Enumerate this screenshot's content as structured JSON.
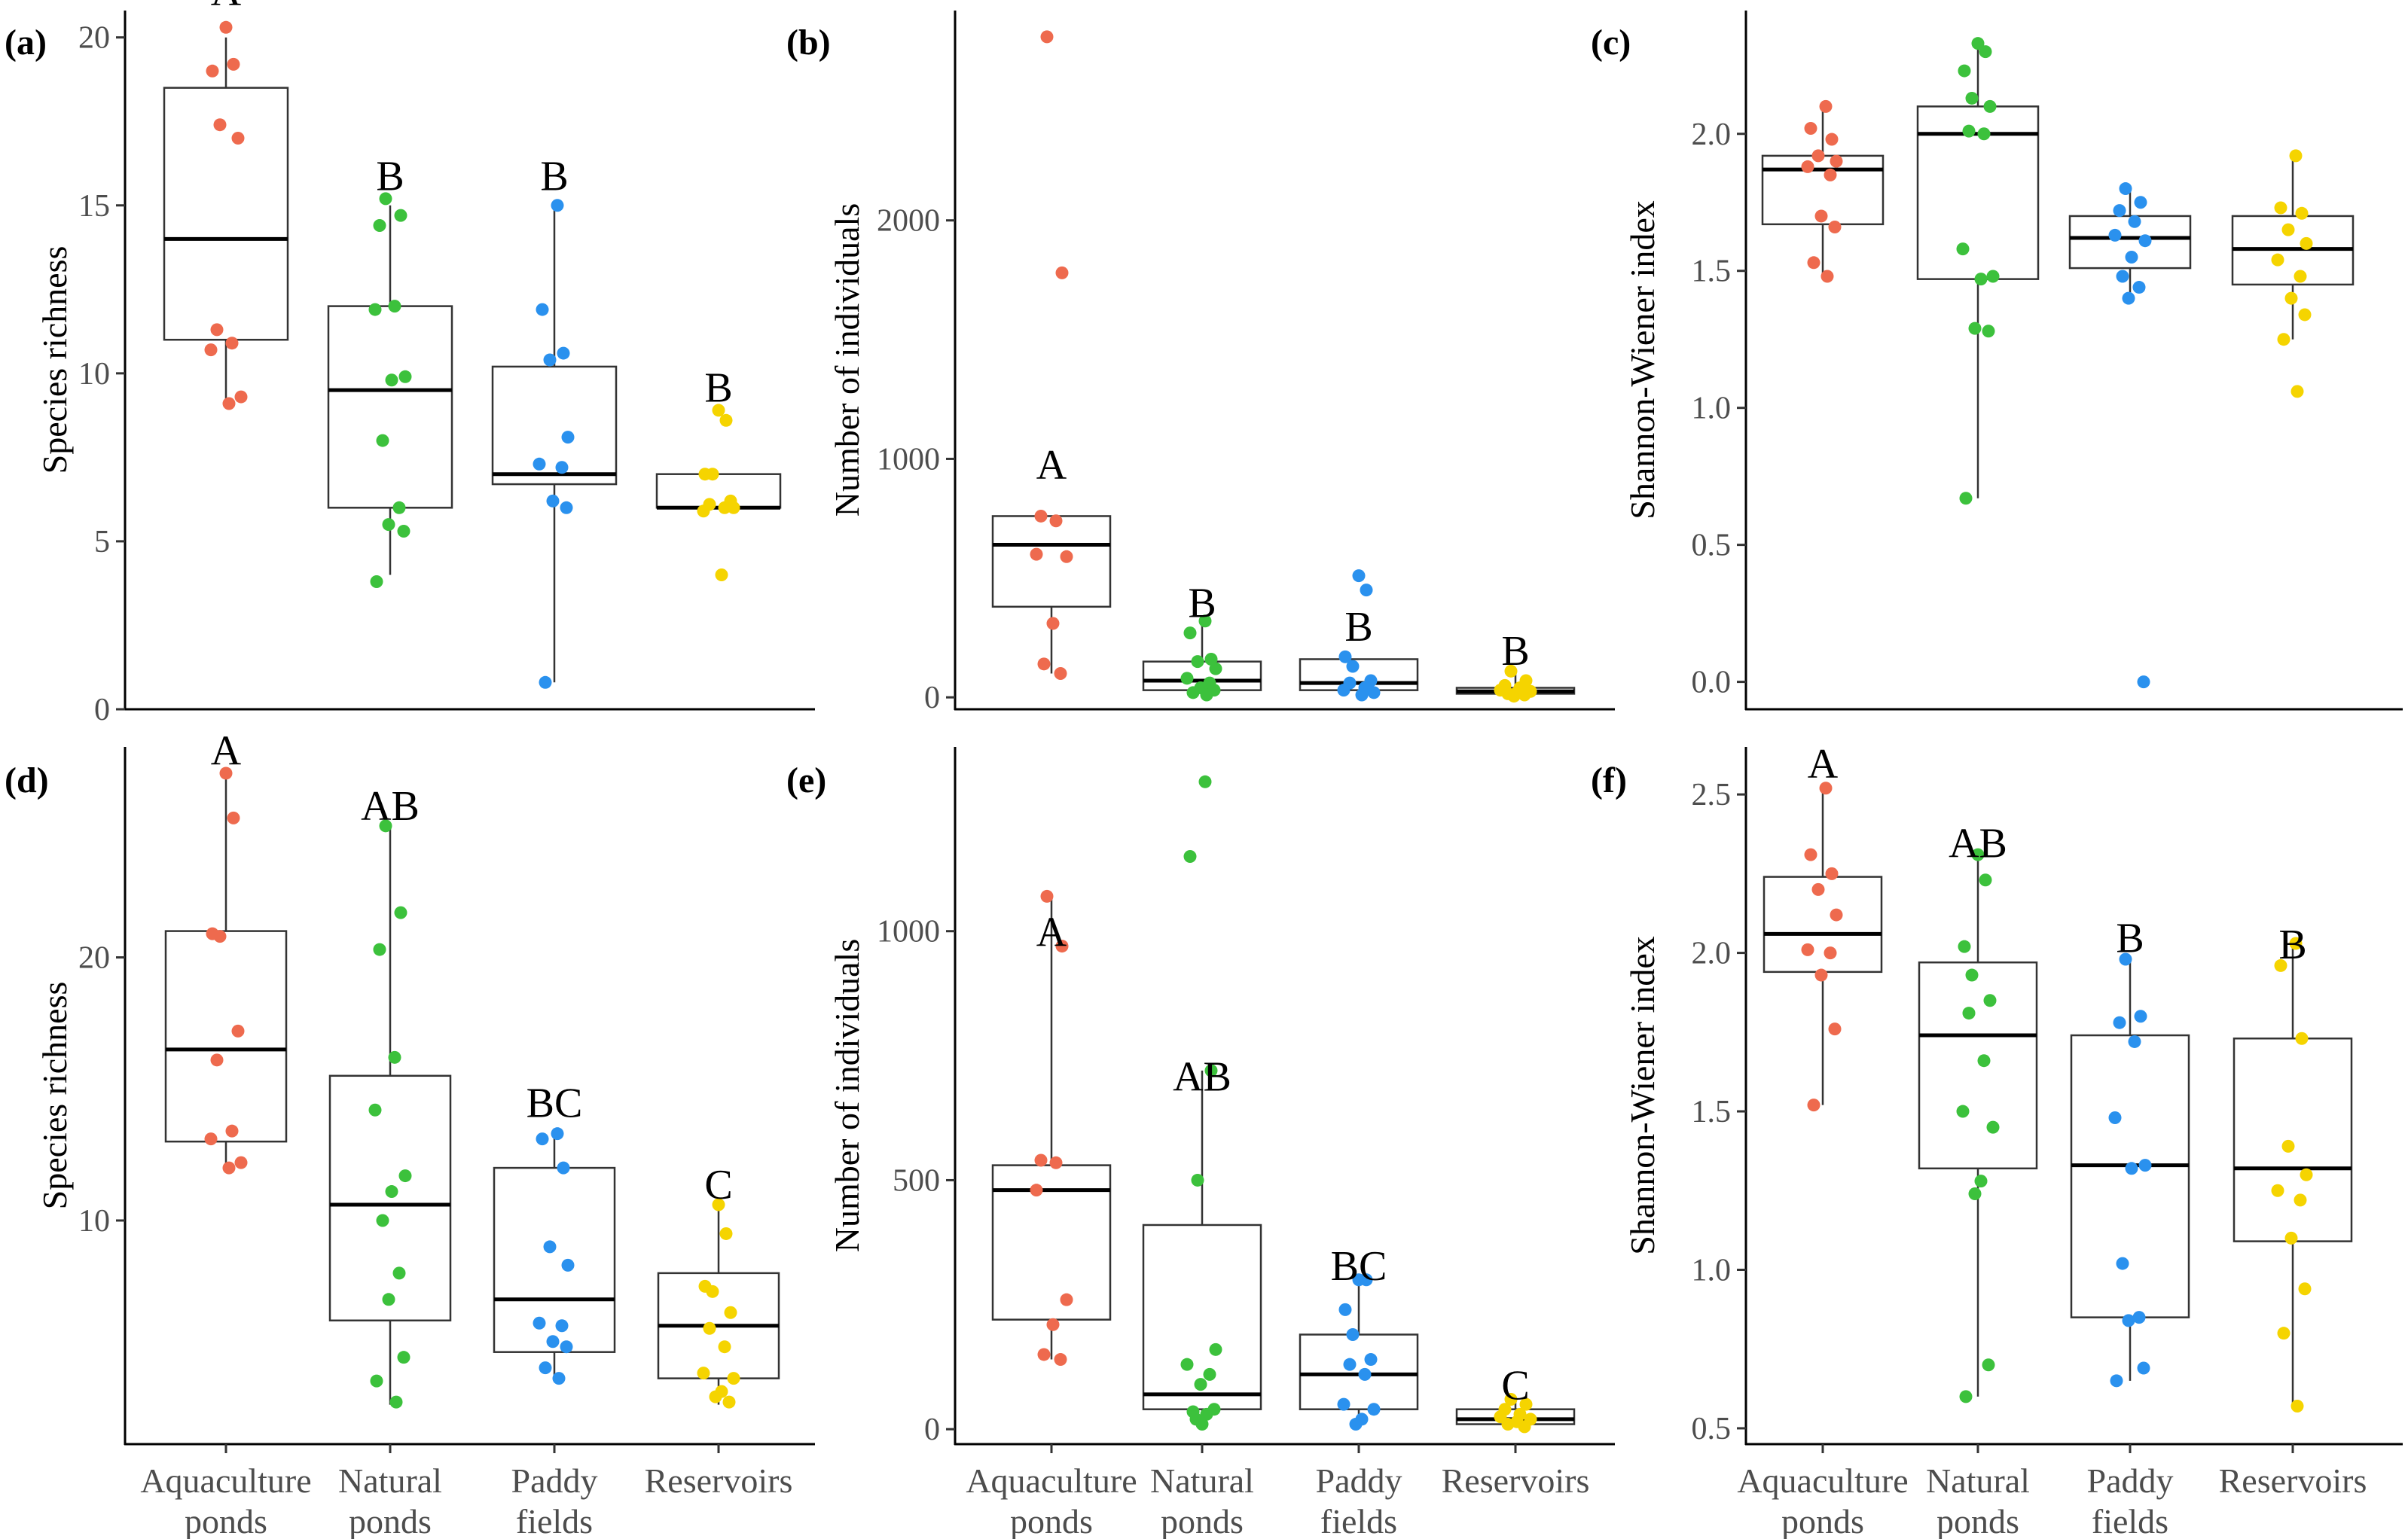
{
  "colors": {
    "Aquaculture": "#ee6a4e",
    "Natural": "#3cc13c",
    "Paddy": "#2a91ee",
    "Reservoirs": "#f5d400"
  },
  "x_categories": [
    {
      "key": "Aquaculture",
      "lines": [
        "Aquaculture",
        "ponds"
      ]
    },
    {
      "key": "Natural",
      "lines": [
        "Natural",
        "ponds"
      ]
    },
    {
      "key": "Paddy",
      "lines": [
        "Paddy",
        "fields"
      ]
    },
    {
      "key": "Reservoirs",
      "lines": [
        "Reservoirs"
      ]
    }
  ],
  "chart_data": [
    {
      "type": "box",
      "panel": "(a)",
      "ylabel": "Species richness",
      "ylim": [
        0,
        20.8
      ],
      "yticks": [
        "0",
        "5",
        "10",
        "15",
        "20"
      ],
      "groups": [
        {
          "name": "Aquaculture",
          "box": {
            "min": 9,
            "q1": 11,
            "median": 14,
            "q3": 18.5,
            "max": 20
          },
          "letter": "A",
          "letter_y": 21.4,
          "points": [
            20.3,
            19.2,
            19.0,
            17.4,
            17.0,
            11.3,
            10.9,
            10.7,
            9.3,
            9.1
          ]
        },
        {
          "name": "Natural",
          "box": {
            "min": 4,
            "q1": 6,
            "median": 9.5,
            "q3": 12,
            "max": 15
          },
          "letter": "B",
          "letter_y": 15.9,
          "points": [
            15.2,
            14.7,
            14.4,
            12.0,
            11.9,
            9.9,
            9.8,
            8.0,
            6.0,
            5.5,
            5.3,
            3.8
          ]
        },
        {
          "name": "Paddy",
          "box": {
            "min": 0.8,
            "q1": 6.7,
            "median": 7,
            "q3": 10.2,
            "max": 15
          },
          "letter": "B",
          "letter_y": 15.9,
          "points": [
            15.0,
            11.9,
            10.6,
            10.4,
            8.1,
            7.3,
            7.2,
            6.2,
            6.0,
            0.8
          ]
        },
        {
          "name": "Reservoirs",
          "box": {
            "min": 6,
            "q1": 6,
            "median": 6,
            "q3": 7,
            "max": 7
          },
          "letter": "B",
          "letter_y": 9.6,
          "points": [
            8.9,
            8.6,
            7.0,
            7.0,
            6.2,
            6.1,
            6.0,
            5.9,
            6.0,
            4.0
          ]
        }
      ]
    },
    {
      "type": "box",
      "panel": "(b)",
      "ylabel": "Number of individuals",
      "ylim": [
        -50,
        2880
      ],
      "yticks": [
        "0",
        "1000",
        "2000"
      ],
      "groups": [
        {
          "name": "Aquaculture",
          "box": {
            "min": 100,
            "q1": 380,
            "median": 640,
            "q3": 760,
            "max": 760
          },
          "letter": "A",
          "letter_y": 980,
          "points": [
            2770,
            1780,
            760,
            740,
            600,
            590,
            310,
            140,
            100
          ]
        },
        {
          "name": "Natural",
          "box": {
            "min": 10,
            "q1": 30,
            "median": 70,
            "q3": 150,
            "max": 320
          },
          "letter": "B",
          "letter_y": 400,
          "points": [
            320,
            270,
            160,
            150,
            120,
            80,
            60,
            40,
            30,
            20,
            10
          ]
        },
        {
          "name": "Paddy",
          "box": {
            "min": 10,
            "q1": 30,
            "median": 60,
            "q3": 160,
            "max": 160
          },
          "letter": "B",
          "letter_y": 300,
          "points": [
            510,
            450,
            170,
            130,
            70,
            60,
            40,
            30,
            20,
            10
          ]
        },
        {
          "name": "Reservoirs",
          "box": {
            "min": 5,
            "q1": 15,
            "median": 25,
            "q3": 40,
            "max": 100
          },
          "letter": "B",
          "letter_y": 200,
          "points": [
            110,
            70,
            50,
            40,
            30,
            25,
            20,
            15,
            10,
            5
          ]
        }
      ]
    },
    {
      "type": "box",
      "panel": "(c)",
      "ylabel": "Shannon-Wiener index",
      "ylim": [
        -0.1,
        2.45
      ],
      "yticks": [
        "0.0",
        "0.5",
        "1.0",
        "1.5",
        "2.0"
      ],
      "groups": [
        {
          "name": "Aquaculture",
          "box": {
            "min": 1.48,
            "q1": 1.67,
            "median": 1.87,
            "q3": 1.92,
            "max": 2.1
          },
          "letter": "",
          "letter_y": 2.2,
          "points": [
            2.1,
            2.02,
            1.98,
            1.92,
            1.9,
            1.88,
            1.85,
            1.7,
            1.66,
            1.53,
            1.48
          ]
        },
        {
          "name": "Natural",
          "box": {
            "min": 0.67,
            "q1": 1.47,
            "median": 2.0,
            "q3": 2.1,
            "max": 2.33
          },
          "letter": "",
          "letter_y": 2.4,
          "points": [
            2.33,
            2.3,
            2.23,
            2.13,
            2.1,
            2.01,
            2.0,
            1.58,
            1.48,
            1.47,
            1.29,
            1.28,
            0.67
          ]
        },
        {
          "name": "Paddy",
          "box": {
            "min": 1.4,
            "q1": 1.51,
            "median": 1.62,
            "q3": 1.7,
            "max": 1.8
          },
          "letter": "",
          "letter_y": 1.9,
          "points": [
            1.8,
            1.75,
            1.72,
            1.68,
            1.63,
            1.61,
            1.55,
            1.48,
            1.44,
            1.4,
            0.0
          ]
        },
        {
          "name": "Reservoirs",
          "box": {
            "min": 1.25,
            "q1": 1.45,
            "median": 1.58,
            "q3": 1.7,
            "max": 1.92
          },
          "letter": "",
          "letter_y": 2.0,
          "points": [
            1.92,
            1.73,
            1.71,
            1.65,
            1.6,
            1.54,
            1.48,
            1.4,
            1.34,
            1.25,
            1.06
          ]
        }
      ]
    },
    {
      "type": "box",
      "panel": "(d)",
      "ylabel": "Species richness",
      "ylim": [
        1.5,
        28.0
      ],
      "yticks": [
        "10",
        "20"
      ],
      "groups": [
        {
          "name": "Aquaculture",
          "box": {
            "min": 12,
            "q1": 13,
            "median": 16.5,
            "q3": 21,
            "max": 27
          },
          "letter": "A",
          "letter_y": 27.9,
          "points": [
            27.0,
            25.3,
            20.9,
            20.8,
            17.2,
            16.1,
            13.4,
            13.1,
            12.2,
            12.0
          ]
        },
        {
          "name": "Natural",
          "box": {
            "min": 3,
            "q1": 6.2,
            "median": 10.6,
            "q3": 15.5,
            "max": 25
          },
          "letter": "AB",
          "letter_y": 25.8,
          "points": [
            25.0,
            21.7,
            20.3,
            16.2,
            14.2,
            11.7,
            11.1,
            10.0,
            8.0,
            7.0,
            4.8,
            3.9,
            3.1
          ]
        },
        {
          "name": "Paddy",
          "box": {
            "min": 4,
            "q1": 5,
            "median": 7,
            "q3": 12,
            "max": 13.5
          },
          "letter": "BC",
          "letter_y": 14.5,
          "points": [
            13.3,
            13.1,
            12.0,
            9.0,
            8.3,
            6.1,
            6.0,
            5.4,
            5.2,
            4.4,
            4.0
          ]
        },
        {
          "name": "Reservoirs",
          "box": {
            "min": 3,
            "q1": 4,
            "median": 6,
            "q3": 8,
            "max": 10.6
          },
          "letter": "C",
          "letter_y": 11.4,
          "points": [
            10.6,
            9.5,
            7.5,
            7.3,
            6.5,
            5.9,
            5.2,
            4.2,
            4.0,
            3.5,
            3.3,
            3.1
          ]
        }
      ]
    },
    {
      "type": "box",
      "panel": "(e)",
      "ylabel": "Number of individuals",
      "ylim": [
        -30,
        1370
      ],
      "yticks": [
        "0",
        "500",
        "1000"
      ],
      "groups": [
        {
          "name": "Aquaculture",
          "box": {
            "min": 140,
            "q1": 220,
            "median": 480,
            "q3": 530,
            "max": 1070
          },
          "letter": "A",
          "letter_y": 1000,
          "points": [
            1070,
            970,
            540,
            535,
            480,
            260,
            210,
            150,
            140
          ]
        },
        {
          "name": "Natural",
          "box": {
            "min": 10,
            "q1": 40,
            "median": 70,
            "q3": 410,
            "max": 720
          },
          "letter": "AB",
          "letter_y": 710,
          "points": [
            1300,
            1150,
            720,
            500,
            160,
            130,
            110,
            90,
            40,
            35,
            30,
            20,
            10
          ]
        },
        {
          "name": "Paddy",
          "box": {
            "min": 10,
            "q1": 40,
            "median": 110,
            "q3": 190,
            "max": 300
          },
          "letter": "BC",
          "letter_y": 330,
          "points": [
            300,
            300,
            240,
            190,
            140,
            130,
            110,
            50,
            40,
            20,
            10
          ]
        },
        {
          "name": "Reservoirs",
          "box": {
            "min": 5,
            "q1": 10,
            "median": 20,
            "q3": 40,
            "max": 60
          },
          "letter": "C",
          "letter_y": 90,
          "points": [
            60,
            50,
            40,
            30,
            25,
            20,
            15,
            10,
            5
          ]
        }
      ]
    },
    {
      "type": "box",
      "panel": "(f)",
      "ylabel": "Shannon-Wiener index",
      "ylim": [
        0.45,
        2.65
      ],
      "yticks": [
        "0.5",
        "1.0",
        "1.5",
        "2.0",
        "2.5"
      ],
      "groups": [
        {
          "name": "Aquaculture",
          "box": {
            "min": 1.52,
            "q1": 1.94,
            "median": 2.06,
            "q3": 2.24,
            "max": 2.52
          },
          "letter": "A",
          "letter_y": 2.6,
          "points": [
            2.52,
            2.31,
            2.25,
            2.2,
            2.12,
            2.01,
            2.0,
            1.93,
            1.76,
            1.52
          ]
        },
        {
          "name": "Natural",
          "box": {
            "min": 0.6,
            "q1": 1.32,
            "median": 1.74,
            "q3": 1.97,
            "max": 2.31
          },
          "letter": "AB",
          "letter_y": 2.35,
          "points": [
            2.31,
            2.23,
            2.02,
            1.93,
            1.85,
            1.81,
            1.66,
            1.5,
            1.45,
            1.28,
            1.24,
            0.7,
            0.6
          ]
        },
        {
          "name": "Paddy",
          "box": {
            "min": 0.65,
            "q1": 0.85,
            "median": 1.33,
            "q3": 1.74,
            "max": 1.98
          },
          "letter": "B",
          "letter_y": 2.05,
          "points": [
            1.98,
            1.8,
            1.78,
            1.72,
            1.48,
            1.33,
            1.32,
            1.02,
            0.85,
            0.84,
            0.69,
            0.65
          ]
        },
        {
          "name": "Reservoirs",
          "box": {
            "min": 0.57,
            "q1": 1.09,
            "median": 1.32,
            "q3": 1.73,
            "max": 2.03
          },
          "letter": "B",
          "letter_y": 2.03,
          "points": [
            2.03,
            1.96,
            1.73,
            1.39,
            1.3,
            1.25,
            1.22,
            1.1,
            0.94,
            0.8,
            0.57
          ]
        }
      ]
    }
  ]
}
